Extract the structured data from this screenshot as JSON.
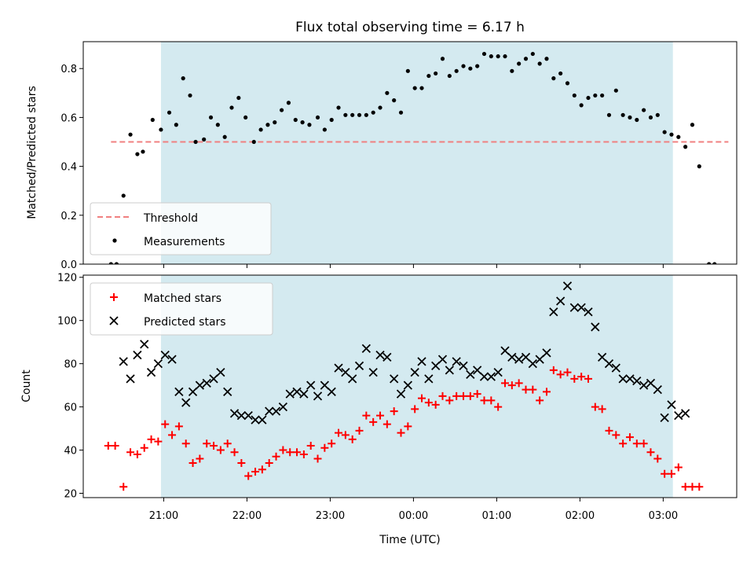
{
  "chart_data": [
    {
      "type": "scatter",
      "title": "Flux total observing time = 6.17 h",
      "ylabel": "Matched/Predicted stars",
      "xlabel": "",
      "xlim": [
        "20:02",
        "03:53"
      ],
      "ylim": [
        0,
        0.91
      ],
      "yticks": [
        "0.0",
        "0.2",
        "0.4",
        "0.6",
        "0.8"
      ],
      "shaded_span": {
        "start": "20:58",
        "end": "03:07",
        "color": "#d4eaf0"
      },
      "threshold": {
        "name": "Threshold",
        "value": 0.5,
        "x_start": "20:22",
        "x_end": "03:47",
        "color": "#f08080"
      },
      "legend": {
        "placement": "lower-left",
        "entries": [
          "Threshold",
          "Measurements"
        ]
      },
      "series": [
        {
          "name": "Measurements",
          "color": "#000000",
          "marker": "dot",
          "points": [
            [
              "20:22",
              0.0
            ],
            [
              "20:26",
              0.0
            ],
            [
              "20:31",
              0.28
            ],
            [
              "20:36",
              0.53
            ],
            [
              "20:41",
              0.45
            ],
            [
              "20:45",
              0.46
            ],
            [
              "20:52",
              0.59
            ],
            [
              "20:58",
              0.55
            ],
            [
              "21:04",
              0.62
            ],
            [
              "21:09",
              0.57
            ],
            [
              "21:14",
              0.76
            ],
            [
              "21:19",
              0.69
            ],
            [
              "21:23",
              0.5
            ],
            [
              "21:29",
              0.51
            ],
            [
              "21:34",
              0.6
            ],
            [
              "21:39",
              0.57
            ],
            [
              "21:44",
              0.52
            ],
            [
              "21:49",
              0.64
            ],
            [
              "21:54",
              0.68
            ],
            [
              "21:59",
              0.6
            ],
            [
              "22:05",
              0.5
            ],
            [
              "22:10",
              0.55
            ],
            [
              "22:15",
              0.57
            ],
            [
              "22:20",
              0.58
            ],
            [
              "22:25",
              0.63
            ],
            [
              "22:30",
              0.66
            ],
            [
              "22:35",
              0.59
            ],
            [
              "22:40",
              0.58
            ],
            [
              "22:45",
              0.57
            ],
            [
              "22:51",
              0.6
            ],
            [
              "22:56",
              0.55
            ],
            [
              "23:01",
              0.59
            ],
            [
              "23:06",
              0.64
            ],
            [
              "23:11",
              0.61
            ],
            [
              "23:16",
              0.61
            ],
            [
              "23:21",
              0.61
            ],
            [
              "23:26",
              0.61
            ],
            [
              "23:31",
              0.62
            ],
            [
              "23:36",
              0.64
            ],
            [
              "23:41",
              0.7
            ],
            [
              "23:46",
              0.67
            ],
            [
              "23:51",
              0.62
            ],
            [
              "23:56",
              0.79
            ],
            [
              "00:01",
              0.72
            ],
            [
              "00:06",
              0.72
            ],
            [
              "00:11",
              0.77
            ],
            [
              "00:16",
              0.78
            ],
            [
              "00:21",
              0.84
            ],
            [
              "00:26",
              0.77
            ],
            [
              "00:31",
              0.79
            ],
            [
              "00:36",
              0.81
            ],
            [
              "00:41",
              0.8
            ],
            [
              "00:46",
              0.81
            ],
            [
              "00:51",
              0.86
            ],
            [
              "00:56",
              0.85
            ],
            [
              "01:01",
              0.85
            ],
            [
              "01:06",
              0.85
            ],
            [
              "01:11",
              0.79
            ],
            [
              "01:16",
              0.82
            ],
            [
              "01:21",
              0.84
            ],
            [
              "01:26",
              0.86
            ],
            [
              "01:31",
              0.82
            ],
            [
              "01:36",
              0.84
            ],
            [
              "01:41",
              0.76
            ],
            [
              "01:46",
              0.78
            ],
            [
              "01:51",
              0.74
            ],
            [
              "01:56",
              0.69
            ],
            [
              "02:01",
              0.65
            ],
            [
              "02:06",
              0.68
            ],
            [
              "02:11",
              0.69
            ],
            [
              "02:16",
              0.69
            ],
            [
              "02:21",
              0.61
            ],
            [
              "02:26",
              0.71
            ],
            [
              "02:31",
              0.61
            ],
            [
              "02:36",
              0.6
            ],
            [
              "02:41",
              0.59
            ],
            [
              "02:46",
              0.63
            ],
            [
              "02:51",
              0.6
            ],
            [
              "02:56",
              0.61
            ],
            [
              "03:01",
              0.54
            ],
            [
              "03:06",
              0.53
            ],
            [
              "03:11",
              0.52
            ],
            [
              "03:16",
              0.48
            ],
            [
              "03:21",
              0.57
            ],
            [
              "03:26",
              0.4
            ],
            [
              "03:33",
              0.0
            ],
            [
              "03:37",
              0.0
            ]
          ]
        }
      ]
    },
    {
      "type": "scatter",
      "title": "",
      "ylabel": "Count",
      "xlabel": "Time (UTC)",
      "xlim": [
        "20:02",
        "03:53"
      ],
      "ylim": [
        18,
        121
      ],
      "yticks": [
        "20",
        "40",
        "60",
        "80",
        "100",
        "120"
      ],
      "xticks": [
        "21:00",
        "22:00",
        "23:00",
        "00:00",
        "01:00",
        "02:00",
        "03:00"
      ],
      "shaded_span": {
        "start": "20:58",
        "end": "03:07",
        "color": "#d4eaf0"
      },
      "legend": {
        "placement": "upper-left",
        "entries": [
          "Matched stars",
          "Predicted stars"
        ]
      },
      "series": [
        {
          "name": "Matched stars",
          "color": "#ff0000",
          "marker": "plus",
          "points": [
            [
              "20:20",
              42
            ],
            [
              "20:25",
              42
            ],
            [
              "20:31",
              23
            ],
            [
              "20:36",
              39
            ],
            [
              "20:41",
              38
            ],
            [
              "20:46",
              41
            ],
            [
              "20:51",
              45
            ],
            [
              "20:56",
              44
            ],
            [
              "21:01",
              52
            ],
            [
              "21:06",
              47
            ],
            [
              "21:11",
              51
            ],
            [
              "21:16",
              43
            ],
            [
              "21:21",
              34
            ],
            [
              "21:26",
              36
            ],
            [
              "21:31",
              43
            ],
            [
              "21:36",
              42
            ],
            [
              "21:41",
              40
            ],
            [
              "21:46",
              43
            ],
            [
              "21:51",
              39
            ],
            [
              "21:56",
              34
            ],
            [
              "22:01",
              28
            ],
            [
              "22:06",
              30
            ],
            [
              "22:11",
              31
            ],
            [
              "22:16",
              34
            ],
            [
              "22:21",
              37
            ],
            [
              "22:26",
              40
            ],
            [
              "22:31",
              39
            ],
            [
              "22:36",
              39
            ],
            [
              "22:41",
              38
            ],
            [
              "22:46",
              42
            ],
            [
              "22:51",
              36
            ],
            [
              "22:56",
              41
            ],
            [
              "23:01",
              43
            ],
            [
              "23:06",
              48
            ],
            [
              "23:11",
              47
            ],
            [
              "23:16",
              45
            ],
            [
              "23:21",
              49
            ],
            [
              "23:26",
              56
            ],
            [
              "23:31",
              53
            ],
            [
              "23:36",
              56
            ],
            [
              "23:41",
              52
            ],
            [
              "23:46",
              58
            ],
            [
              "23:51",
              48
            ],
            [
              "23:56",
              51
            ],
            [
              "00:01",
              59
            ],
            [
              "00:06",
              64
            ],
            [
              "00:11",
              62
            ],
            [
              "00:16",
              61
            ],
            [
              "00:21",
              65
            ],
            [
              "00:26",
              63
            ],
            [
              "00:31",
              65
            ],
            [
              "00:36",
              65
            ],
            [
              "00:41",
              65
            ],
            [
              "00:46",
              66
            ],
            [
              "00:51",
              63
            ],
            [
              "00:56",
              63
            ],
            [
              "01:01",
              60
            ],
            [
              "01:06",
              71
            ],
            [
              "01:11",
              70
            ],
            [
              "01:16",
              71
            ],
            [
              "01:21",
              68
            ],
            [
              "01:26",
              68
            ],
            [
              "01:31",
              63
            ],
            [
              "01:36",
              67
            ],
            [
              "01:41",
              77
            ],
            [
              "01:46",
              75
            ],
            [
              "01:51",
              76
            ],
            [
              "01:56",
              73
            ],
            [
              "02:01",
              74
            ],
            [
              "02:06",
              73
            ],
            [
              "02:11",
              60
            ],
            [
              "02:16",
              59
            ],
            [
              "02:21",
              49
            ],
            [
              "02:26",
              47
            ],
            [
              "02:31",
              43
            ],
            [
              "02:36",
              46
            ],
            [
              "02:41",
              43
            ],
            [
              "02:46",
              43
            ],
            [
              "02:51",
              39
            ],
            [
              "02:56",
              36
            ],
            [
              "03:01",
              29
            ],
            [
              "03:06",
              29
            ],
            [
              "03:11",
              32
            ],
            [
              "03:16",
              23
            ],
            [
              "03:21",
              23
            ],
            [
              "03:26",
              23
            ]
          ]
        },
        {
          "name": "Predicted stars",
          "color": "#000000",
          "marker": "x",
          "points": [
            [
              "20:31",
              81
            ],
            [
              "20:36",
              73
            ],
            [
              "20:41",
              84
            ],
            [
              "20:46",
              89
            ],
            [
              "20:51",
              76
            ],
            [
              "20:56",
              80
            ],
            [
              "21:01",
              84
            ],
            [
              "21:06",
              82
            ],
            [
              "21:11",
              67
            ],
            [
              "21:16",
              62
            ],
            [
              "21:21",
              67
            ],
            [
              "21:26",
              70
            ],
            [
              "21:31",
              71
            ],
            [
              "21:36",
              73
            ],
            [
              "21:41",
              76
            ],
            [
              "21:46",
              67
            ],
            [
              "21:51",
              57
            ],
            [
              "21:56",
              56
            ],
            [
              "22:01",
              56
            ],
            [
              "22:06",
              54
            ],
            [
              "22:11",
              54
            ],
            [
              "22:16",
              58
            ],
            [
              "22:21",
              58
            ],
            [
              "22:26",
              60
            ],
            [
              "22:31",
              66
            ],
            [
              "22:36",
              67
            ],
            [
              "22:41",
              66
            ],
            [
              "22:46",
              70
            ],
            [
              "22:51",
              65
            ],
            [
              "22:56",
              70
            ],
            [
              "23:01",
              67
            ],
            [
              "23:06",
              78
            ],
            [
              "23:11",
              76
            ],
            [
              "23:16",
              73
            ],
            [
              "23:21",
              79
            ],
            [
              "23:26",
              87
            ],
            [
              "23:31",
              76
            ],
            [
              "23:36",
              84
            ],
            [
              "23:41",
              83
            ],
            [
              "23:46",
              73
            ],
            [
              "23:51",
              66
            ],
            [
              "23:56",
              70
            ],
            [
              "00:01",
              76
            ],
            [
              "00:06",
              81
            ],
            [
              "00:11",
              73
            ],
            [
              "00:16",
              79
            ],
            [
              "00:21",
              82
            ],
            [
              "00:26",
              77
            ],
            [
              "00:31",
              81
            ],
            [
              "00:36",
              79
            ],
            [
              "00:41",
              75
            ],
            [
              "00:46",
              77
            ],
            [
              "00:51",
              74
            ],
            [
              "00:56",
              74
            ],
            [
              "01:01",
              76
            ],
            [
              "01:06",
              86
            ],
            [
              "01:11",
              83
            ],
            [
              "01:16",
              82
            ],
            [
              "01:21",
              83
            ],
            [
              "01:26",
              80
            ],
            [
              "01:31",
              82
            ],
            [
              "01:36",
              85
            ],
            [
              "01:41",
              104
            ],
            [
              "01:46",
              109
            ],
            [
              "01:51",
              116
            ],
            [
              "01:56",
              106
            ],
            [
              "02:01",
              106
            ],
            [
              "02:06",
              104
            ],
            [
              "02:11",
              97
            ],
            [
              "02:16",
              83
            ],
            [
              "02:21",
              80
            ],
            [
              "02:26",
              78
            ],
            [
              "02:31",
              73
            ],
            [
              "02:36",
              73
            ],
            [
              "02:41",
              72
            ],
            [
              "02:46",
              70
            ],
            [
              "02:51",
              71
            ],
            [
              "02:56",
              68
            ],
            [
              "03:01",
              55
            ],
            [
              "03:06",
              61
            ],
            [
              "03:11",
              56
            ],
            [
              "03:16",
              57
            ]
          ]
        }
      ]
    }
  ]
}
